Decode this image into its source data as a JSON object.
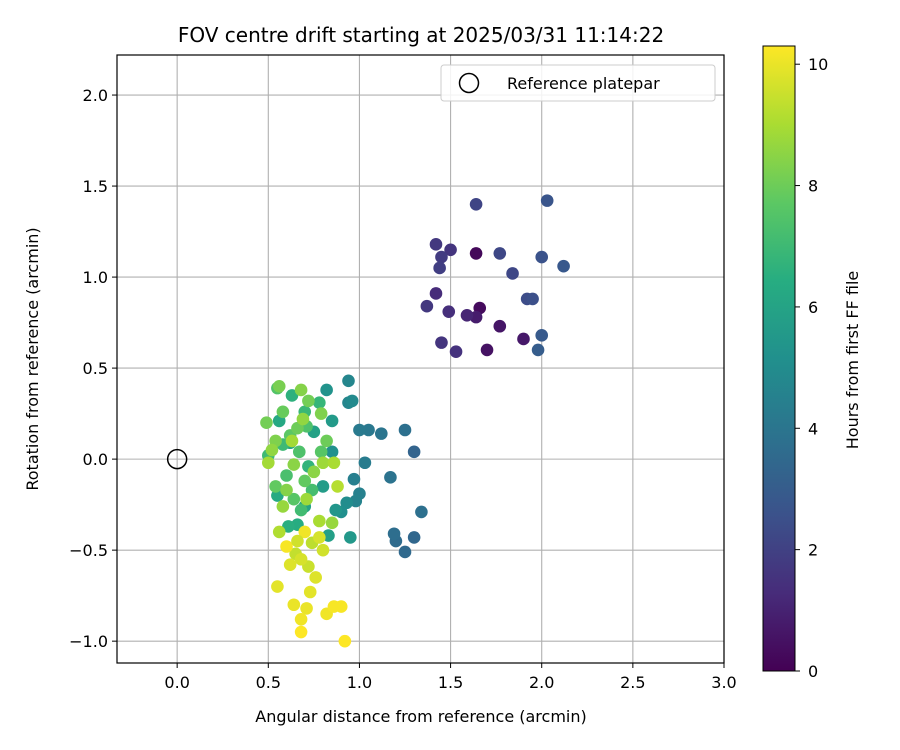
{
  "chart_data": {
    "type": "scatter",
    "title": "FOV centre drift starting at 2025/03/31 11:14:22",
    "xlabel": "Angular distance from reference (arcmin)",
    "ylabel": "Rotation from reference (arcmin)",
    "xlim": [
      -0.33,
      3.0
    ],
    "ylim": [
      -1.12,
      2.22
    ],
    "xticks": [
      0.0,
      0.5,
      1.0,
      1.5,
      2.0,
      2.5,
      3.0
    ],
    "xtick_labels": [
      "0.0",
      "0.5",
      "1.0",
      "1.5",
      "2.0",
      "2.5",
      "3.0"
    ],
    "yticks": [
      -1.0,
      -0.5,
      0.0,
      0.5,
      1.0,
      1.5,
      2.0
    ],
    "ytick_labels": [
      "−1.0",
      "−0.5",
      "0.0",
      "0.5",
      "1.0",
      "1.5",
      "2.0"
    ],
    "grid": true,
    "legend": {
      "position": "top-right",
      "entries": [
        {
          "label": "Reference platepar",
          "marker": "open-circle",
          "color": "#000000"
        }
      ]
    },
    "reference": {
      "x": 0.0,
      "y": 0.0
    },
    "colorbar": {
      "label": "Hours from first FF file",
      "colormap": "viridis",
      "range": [
        0,
        10.3
      ],
      "ticks": [
        0,
        2,
        4,
        6,
        8,
        10
      ],
      "tick_labels": [
        "0",
        "2",
        "4",
        "6",
        "8",
        "10"
      ]
    },
    "points": [
      [
        1.64,
        1.13,
        0.2
      ],
      [
        1.66,
        0.83,
        0.3
      ],
      [
        1.7,
        0.6,
        0.5
      ],
      [
        1.77,
        0.73,
        0.6
      ],
      [
        1.9,
        0.66,
        0.7
      ],
      [
        1.64,
        0.78,
        0.8
      ],
      [
        1.59,
        0.79,
        1.1
      ],
      [
        1.42,
        0.91,
        1.3
      ],
      [
        1.49,
        0.81,
        1.4
      ],
      [
        1.53,
        0.59,
        1.5
      ],
      [
        1.45,
        0.64,
        1.6
      ],
      [
        1.37,
        0.84,
        1.7
      ],
      [
        1.5,
        1.15,
        1.6
      ],
      [
        1.42,
        1.18,
        1.7
      ],
      [
        1.45,
        1.11,
        1.8
      ],
      [
        1.44,
        1.05,
        1.9
      ],
      [
        1.64,
        1.4,
        2.1
      ],
      [
        1.77,
        1.13,
        2.2
      ],
      [
        1.84,
        1.02,
        2.2
      ],
      [
        1.92,
        0.88,
        2.4
      ],
      [
        1.95,
        0.88,
        2.5
      ],
      [
        2.0,
        1.11,
        2.6
      ],
      [
        2.03,
        1.42,
        2.7
      ],
      [
        2.12,
        1.06,
        2.8
      ],
      [
        2.0,
        0.68,
        2.9
      ],
      [
        1.98,
        0.6,
        3.0
      ],
      [
        1.3,
        0.04,
        3.3
      ],
      [
        1.3,
        -0.43,
        3.4
      ],
      [
        1.25,
        -0.51,
        3.5
      ],
      [
        1.2,
        -0.45,
        3.6
      ],
      [
        1.19,
        -0.41,
        3.7
      ],
      [
        1.34,
        -0.29,
        3.8
      ],
      [
        1.25,
        0.16,
        3.8
      ],
      [
        1.17,
        -0.1,
        3.9
      ],
      [
        1.12,
        0.14,
        4.0
      ],
      [
        1.05,
        0.16,
        4.1
      ],
      [
        1.0,
        0.16,
        4.2
      ],
      [
        1.03,
        -0.02,
        4.3
      ],
      [
        0.97,
        -0.11,
        4.4
      ],
      [
        1.0,
        -0.19,
        4.5
      ],
      [
        0.98,
        -0.23,
        4.6
      ],
      [
        0.94,
        0.31,
        4.7
      ],
      [
        0.94,
        0.43,
        4.7
      ],
      [
        0.96,
        0.32,
        4.9
      ],
      [
        0.93,
        -0.24,
        5.0
      ],
      [
        0.9,
        -0.29,
        5.1
      ],
      [
        0.85,
        0.04,
        5.2
      ],
      [
        0.82,
        0.38,
        5.3
      ],
      [
        0.87,
        -0.28,
        5.4
      ],
      [
        0.95,
        -0.43,
        5.5
      ],
      [
        0.85,
        0.21,
        5.6
      ],
      [
        0.8,
        -0.15,
        5.7
      ],
      [
        0.83,
        -0.42,
        5.8
      ],
      [
        0.75,
        0.15,
        5.9
      ],
      [
        0.7,
        -0.26,
        6.0
      ],
      [
        0.62,
        0.09,
        6.1
      ],
      [
        0.56,
        0.21,
        6.2
      ],
      [
        0.55,
        -0.2,
        6.3
      ],
      [
        0.66,
        -0.36,
        6.4
      ],
      [
        0.61,
        -0.37,
        6.5
      ],
      [
        0.63,
        0.35,
        6.6
      ],
      [
        0.72,
        -0.04,
        6.7
      ],
      [
        0.78,
        0.31,
        6.8
      ],
      [
        0.7,
        0.26,
        6.9
      ],
      [
        0.5,
        0.02,
        7.0
      ],
      [
        0.58,
        0.08,
        7.0
      ],
      [
        0.68,
        -0.28,
        7.1
      ],
      [
        0.74,
        -0.17,
        7.2
      ],
      [
        0.6,
        -0.09,
        7.3
      ],
      [
        0.67,
        0.04,
        7.4
      ],
      [
        0.71,
        0.18,
        7.4
      ],
      [
        0.55,
        0.39,
        7.5
      ],
      [
        0.64,
        -0.22,
        7.6
      ],
      [
        0.79,
        0.04,
        7.6
      ],
      [
        0.62,
        0.13,
        7.7
      ],
      [
        0.54,
        -0.15,
        7.8
      ],
      [
        0.7,
        -0.12,
        7.8
      ],
      [
        0.58,
        0.26,
        7.9
      ],
      [
        0.66,
        0.17,
        8.0
      ],
      [
        0.82,
        0.1,
        8.0
      ],
      [
        0.49,
        0.2,
        8.1
      ],
      [
        0.72,
        0.32,
        8.1
      ],
      [
        0.56,
        0.4,
        8.2
      ],
      [
        0.79,
        0.25,
        8.3
      ],
      [
        0.54,
        0.1,
        8.3
      ],
      [
        0.6,
        -0.17,
        8.4
      ],
      [
        0.68,
        0.38,
        8.4
      ],
      [
        0.75,
        -0.07,
        8.5
      ],
      [
        0.64,
        -0.03,
        8.5
      ],
      [
        0.52,
        0.05,
        8.6
      ],
      [
        0.69,
        0.22,
        8.6
      ],
      [
        0.85,
        -0.35,
        8.7
      ],
      [
        0.58,
        -0.26,
        8.7
      ],
      [
        0.8,
        -0.02,
        8.8
      ],
      [
        0.71,
        -0.22,
        8.8
      ],
      [
        0.5,
        -0.02,
        8.9
      ],
      [
        0.63,
        0.1,
        8.9
      ],
      [
        0.86,
        -0.02,
        9.0
      ],
      [
        0.78,
        -0.34,
        9.0
      ],
      [
        0.56,
        -0.4,
        9.1
      ],
      [
        0.88,
        -0.15,
        9.2
      ],
      [
        0.74,
        -0.46,
        9.3
      ],
      [
        0.65,
        -0.52,
        9.4
      ],
      [
        0.72,
        -0.59,
        9.5
      ],
      [
        0.8,
        -0.5,
        9.6
      ],
      [
        0.68,
        -0.55,
        9.7
      ],
      [
        0.62,
        -0.58,
        9.8
      ],
      [
        0.76,
        -0.65,
        9.8
      ],
      [
        0.73,
        -0.73,
        9.9
      ],
      [
        0.55,
        -0.7,
        9.9
      ],
      [
        0.64,
        -0.8,
        10.0
      ],
      [
        0.71,
        -0.82,
        10.0
      ],
      [
        0.68,
        -0.88,
        10.1
      ],
      [
        0.82,
        -0.85,
        10.1
      ],
      [
        0.86,
        -0.81,
        10.2
      ],
      [
        0.9,
        -0.81,
        10.2
      ],
      [
        0.68,
        -0.95,
        10.3
      ],
      [
        0.92,
        -1.0,
        10.3
      ],
      [
        0.6,
        -0.48,
        10.2
      ],
      [
        0.7,
        -0.4,
        10.1
      ],
      [
        0.78,
        -0.43,
        9.7
      ],
      [
        0.66,
        -0.45,
        9.6
      ]
    ]
  }
}
